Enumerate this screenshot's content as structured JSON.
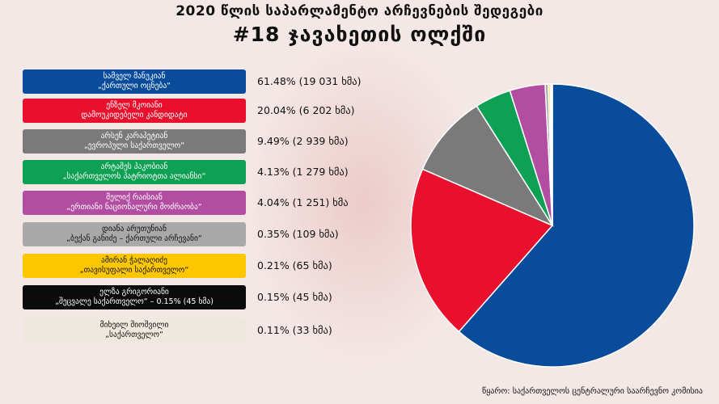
{
  "header": {
    "title": "2020 წლის საპარლამენტო არჩევნების შედეგები",
    "subtitle": "#18 ჯავახეთის ოლქში"
  },
  "source": "წყარო: საქართველოს ცენტრალური საარჩევნო კომისია",
  "chart_data": {
    "type": "pie",
    "categories": [
      "სამველ მანუკიან „ქართული ოცნება“",
      "ენზელ მკოიანი დამოუკიდებელი კანდიდატი",
      "არსენ კარაპეტიან „ევროპული საქართველო“",
      "არტაშეს პაკობიან „საქართველოს პატრიოტთა ალიანსი“",
      "მელიქ რაისიან „ერთიანი ნაციონალური მოძრაობა“",
      "დიანა არუთუნიან „ბექან განიძე – ქართული არჩევანი“",
      "ამირან ჭალაღიძე „თავისუფალი საქართველო“",
      "ელზა გრიგორიანი „შეცვალე საქართველო“ – 0.15% (45 ხმა)",
      "მიხეილ შიოშვილი „საქართველო“"
    ],
    "values": [
      61.48,
      20.04,
      9.49,
      4.13,
      4.04,
      0.35,
      0.21,
      0.15,
      0.11
    ],
    "labels": [
      "61.48% (19 031 ხმა)",
      "20.04% (6 202 ხმა)",
      "9.49% (2 939 ხმა)",
      "4.13% (1 279 ხმა)",
      "4.04% (1 251) ხმა",
      "0.35% (109 ხმა)",
      "0.21% (65 ხმა)",
      "0.15% (45 ხმა)",
      "0.11% (33 ხმა)"
    ],
    "legend_position": "left"
  },
  "legend": [
    {
      "name": "სამველ მანუკიან",
      "party": "„ქართული ოცნება“",
      "color": "#0a4c9c",
      "text_color": "#ffffff"
    },
    {
      "name": "ენზელ მკოიანი",
      "party": "დამოუკიდებელი კანდიდატი",
      "color": "#e8102d",
      "text_color": "#ffffff"
    },
    {
      "name": "არსენ კარაპეტიან",
      "party": "„ევროპული საქართველო“",
      "color": "#7a7a7a",
      "text_color": "#ffffff"
    },
    {
      "name": "არტაშეს პაკობიან",
      "party": "„საქართველოს პატრიოტთა ალიანსი“",
      "color": "#0fa153",
      "text_color": "#ffffff"
    },
    {
      "name": "მელიქ რაისიან",
      "party": "„ერთიანი ნაციონალური მოძრაობა“",
      "color": "#b24da1",
      "text_color": "#ffffff"
    },
    {
      "name": "დიანა არუთუნიან",
      "party": "„ბექან განიძე – ქართული არჩევანი“",
      "color": "#a9a9a9",
      "text_color": "#111111"
    },
    {
      "name": "ამირან ჭალაღიძე",
      "party": "„თავისუფალი საქართველო“",
      "color": "#fcc700",
      "text_color": "#111111"
    },
    {
      "name": "ელზა გრიგორიანი",
      "party": "„შეცვალე საქართველო“ – 0.15% (45 ხმა)",
      "color": "#0b0b0b",
      "text_color": "#ffffff"
    },
    {
      "name": "მიხეილ შიოშვილი",
      "party": "„საქართველო“",
      "color": "#efe8df",
      "text_color": "#111111"
    }
  ]
}
